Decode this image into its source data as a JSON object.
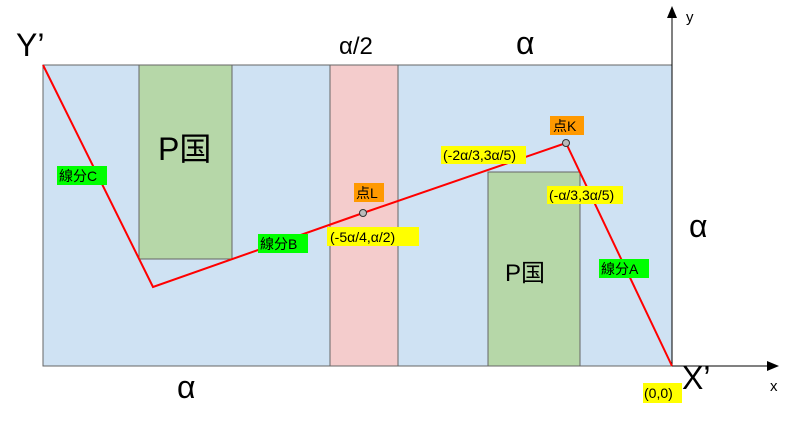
{
  "labels": {
    "y_prime": "Y’",
    "x_prime": "X’",
    "half_alpha": "α/2",
    "alpha_top": "α",
    "alpha_right": "α",
    "alpha_bottom": "α",
    "axis_y": "y",
    "axis_x": "x",
    "country_left": "P国",
    "country_right": "P国"
  },
  "segments": {
    "a": "線分A",
    "b": "線分B",
    "c": "線分C"
  },
  "points": {
    "k_name": "点K",
    "k_coord": "(-2α/3,3α/5)",
    "k_edge_coord": "(-α/3,3α/5)",
    "l_name": "点L",
    "l_coord": "(-5α/4,α/2)",
    "origin": "(0,0)"
  },
  "colors": {
    "background_region": "#cfe2f3",
    "country_fill": "#b6d7a8",
    "strip_fill": "#f4cccc",
    "path_line": "#ff0000",
    "segment_tag": "#00ff00",
    "coord_tag": "#ffff00",
    "point_tag": "#ff9900"
  }
}
